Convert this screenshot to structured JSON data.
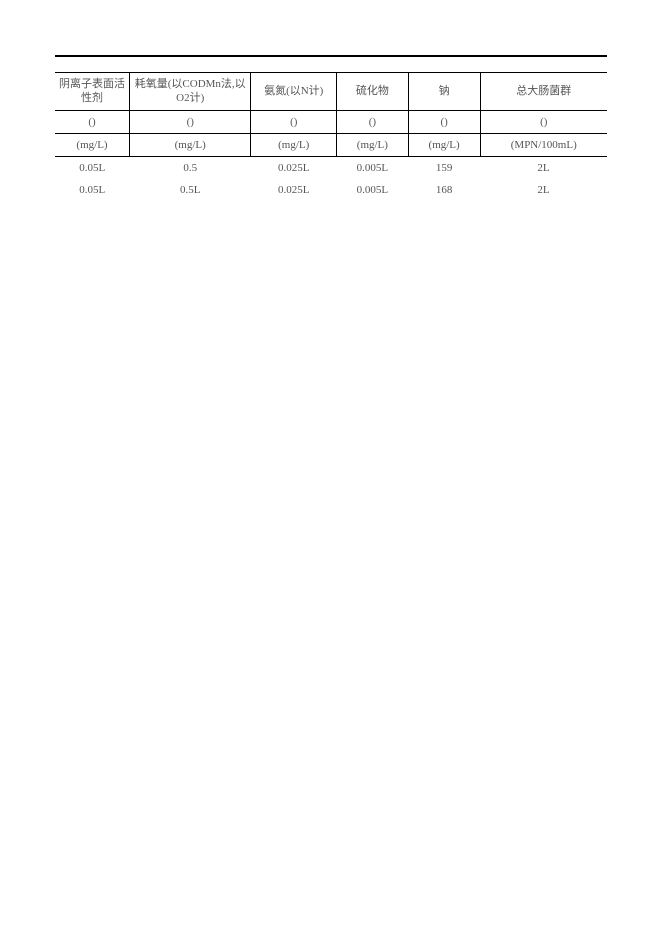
{
  "table": {
    "columns": [
      {
        "header": "阴离子表面活性剂",
        "paren": "()",
        "unit": "(mg/L)",
        "width": "13.5%"
      },
      {
        "header": "耗氧量(以CODMn法,以O2计)",
        "paren": "()",
        "unit": "(mg/L)",
        "width": "22%"
      },
      {
        "header": "氨氮(以N计)",
        "paren": "()",
        "unit": "(mg/L)",
        "width": "15.5%"
      },
      {
        "header": "硫化物",
        "paren": "()",
        "unit": "(mg/L)",
        "width": "13%"
      },
      {
        "header": "钠",
        "paren": "()",
        "unit": "(mg/L)",
        "width": "13%"
      },
      {
        "header": "总大肠菌群",
        "paren": "()",
        "unit": "(MPN/100mL)",
        "width": "23%"
      }
    ],
    "rows": [
      [
        "0.05L",
        "0.5",
        "0.025L",
        "0.005L",
        "159",
        "2L"
      ],
      [
        "0.05L",
        "0.5L",
        "0.025L",
        "0.005L",
        "168",
        "2L"
      ]
    ]
  },
  "styling": {
    "background_color": "#ffffff",
    "text_color": "#555555",
    "border_color": "#000000",
    "font_family": "SimSun, 宋体, serif",
    "font_size": 11,
    "top_border_width": 2,
    "inner_border_width": 1
  }
}
